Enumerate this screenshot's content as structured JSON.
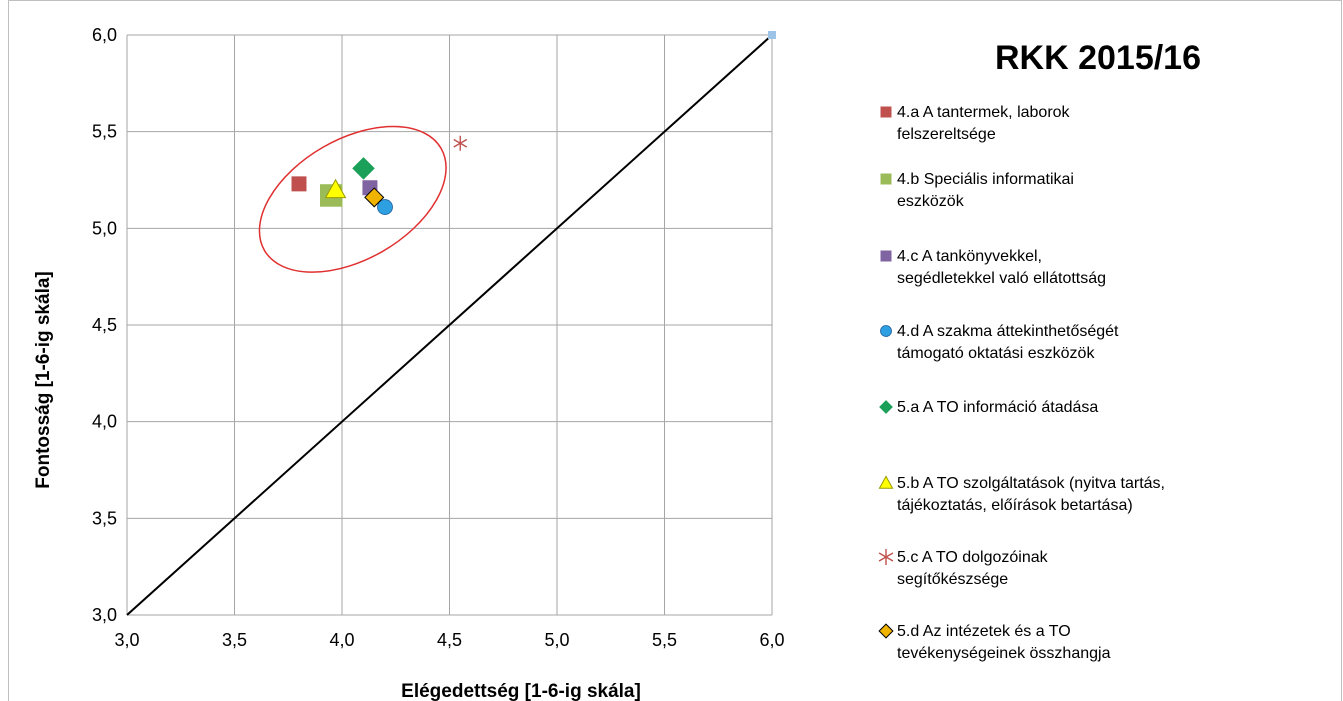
{
  "chart_data": {
    "type": "scatter",
    "title": "RKK 2015/16",
    "xlabel": "Elégedettség [1-6-ig skála]",
    "ylabel": "Fontosság [1-6-ig skála]",
    "xlim": [
      3.0,
      6.0
    ],
    "ylim": [
      3.0,
      6.0
    ],
    "x_ticks": [
      "3,0",
      "3,5",
      "4,0",
      "4,5",
      "5,0",
      "5,5",
      "6,0"
    ],
    "y_ticks": [
      "3,0",
      "3,5",
      "4,0",
      "4,5",
      "5,0",
      "5,5",
      "6,0"
    ],
    "grid": true,
    "legend_position": "right",
    "reference_line": {
      "x": [
        3.0,
        6.0
      ],
      "y": [
        3.0,
        6.0
      ],
      "color": "#000000"
    },
    "reference_point": {
      "x": 6.0,
      "y": 6.0,
      "color": "#9dc3e6"
    },
    "highlight_ellipse": {
      "cx": 4.05,
      "cy": 5.15,
      "color": "#e03030"
    },
    "series": [
      {
        "name": "4.a  A tantermek, laborok felszereltsége",
        "lines": [
          "4.a  A tantermek, laborok",
          "felszereltsége"
        ],
        "marker": "square",
        "color": "#c0504d",
        "size": 1.0,
        "x": 3.8,
        "y": 5.23
      },
      {
        "name": "4.b  Speciális informatikai eszközök",
        "lines": [
          "4.b  Speciális informatikai",
          "eszközök"
        ],
        "marker": "square",
        "color": "#9bbb59",
        "size": 1.5,
        "x": 3.95,
        "y": 5.17
      },
      {
        "name": "4.c  A tankönyvekkel, segédletekkel való ellátottság",
        "lines": [
          "4.c  A tankönyvekkel,",
          "segédletekkel való ellátottság"
        ],
        "marker": "square",
        "color": "#8064a2",
        "size": 1.0,
        "x": 4.13,
        "y": 5.21
      },
      {
        "name": "4.d  A szakma áttekinthetőségét támogató oktatási eszközök",
        "lines": [
          "4.d  A szakma áttekinthetőségét",
          "támogató oktatási eszközök"
        ],
        "marker": "circle",
        "color": "#2e9fe0",
        "size": 1.0,
        "x": 4.2,
        "y": 5.11
      },
      {
        "name": "5.a  A TO információ átadása",
        "lines": [
          "5.a  A TO információ átadása"
        ],
        "marker": "diamond",
        "color": "#1aa058",
        "size": 1.2,
        "x": 4.1,
        "y": 5.31
      },
      {
        "name": "5.b  A TO  szolgáltatások (nyitva tartás, tájékoztatás, előírások betartása)",
        "lines": [
          "5.b  A TO  szolgáltatások (nyitva tartás,",
          "tájékoztatás, előírások betartása)"
        ],
        "marker": "triangle",
        "color": "#ffff00",
        "size": 1.1,
        "x": 3.97,
        "y": 5.2
      },
      {
        "name": "5.c  A TO dolgozóinak segítőkészsége",
        "lines": [
          "5.c  A TO dolgozóinak",
          "segítőkészsége"
        ],
        "marker": "star",
        "color": "#c0504d",
        "size": 1.0,
        "x": 4.55,
        "y": 5.44
      },
      {
        "name": "5.d  Az intézetek és a TO tevékenységeinek összhangja",
        "lines": [
          "5.d  Az intézetek és a TO",
          "tevékenységeinek összhangja"
        ],
        "marker": "diamond",
        "color": "#f0b400",
        "size": 1.0,
        "x": 4.15,
        "y": 5.16
      }
    ]
  }
}
